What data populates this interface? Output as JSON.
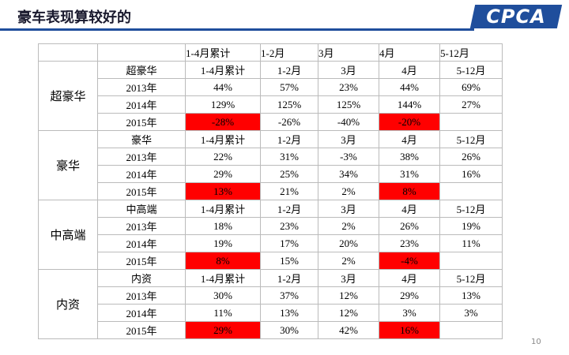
{
  "header": {
    "title": "豪车表现算较好的",
    "logo": "CPCA"
  },
  "table": {
    "columns": [
      "1-4月累计",
      "1-2月",
      "3月",
      "4月",
      "5-12月"
    ],
    "highlight_color": "#ff0000",
    "groups": [
      {
        "name": "超豪华",
        "columns": [
          "超豪华",
          "1-4月累计",
          "1-2月",
          "3月",
          "4月",
          "5-12月"
        ],
        "rows": [
          {
            "year": "2013年",
            "values": [
              "44%",
              "57%",
              "23%",
              "44%",
              "69%"
            ]
          },
          {
            "year": "2014年",
            "values": [
              "129%",
              "125%",
              "125%",
              "144%",
              "27%"
            ]
          },
          {
            "year": "2015年",
            "values": [
              "-28%",
              "-26%",
              "-40%",
              "-20%"
            ],
            "highlight": [
              0,
              3
            ]
          }
        ]
      },
      {
        "name": "豪华",
        "columns": [
          "豪华",
          "1-4月累计",
          "1-2月",
          "3月",
          "4月",
          "5-12月"
        ],
        "rows": [
          {
            "year": "2013年",
            "values": [
              "22%",
              "31%",
              "-3%",
              "38%",
              "26%"
            ]
          },
          {
            "year": "2014年",
            "values": [
              "29%",
              "25%",
              "34%",
              "31%",
              "16%"
            ]
          },
          {
            "year": "2015年",
            "values": [
              "13%",
              "21%",
              "2%",
              "8%"
            ],
            "highlight": [
              0,
              3
            ]
          }
        ]
      },
      {
        "name": "中高端",
        "columns": [
          "中高端",
          "1-4月累计",
          "1-2月",
          "3月",
          "4月",
          "5-12月"
        ],
        "rows": [
          {
            "year": "2013年",
            "values": [
              "18%",
              "23%",
              "2%",
              "26%",
              "19%"
            ]
          },
          {
            "year": "2014年",
            "values": [
              "19%",
              "17%",
              "20%",
              "23%",
              "11%"
            ]
          },
          {
            "year": "2015年",
            "values": [
              "8%",
              "15%",
              "2%",
              "-4%"
            ],
            "highlight": [
              0,
              3
            ]
          }
        ]
      },
      {
        "name": "内资",
        "columns": [
          "内资",
          "1-4月累计",
          "1-2月",
          "3月",
          "4月",
          "5-12月"
        ],
        "rows": [
          {
            "year": "2013年",
            "values": [
              "30%",
              "37%",
              "12%",
              "29%",
              "13%"
            ]
          },
          {
            "year": "2014年",
            "values": [
              "11%",
              "13%",
              "12%",
              "3%",
              "3%"
            ]
          },
          {
            "year": "2015年",
            "values": [
              "29%",
              "30%",
              "42%",
              "16%"
            ],
            "highlight": [
              0,
              3
            ]
          }
        ]
      }
    ]
  },
  "footer": {
    "page": "10"
  }
}
